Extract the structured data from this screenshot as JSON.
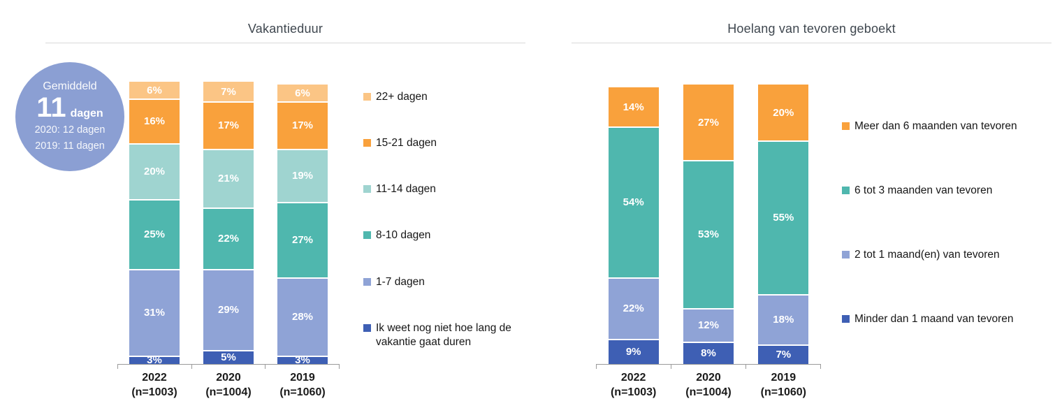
{
  "badge": {
    "intro": "Gemiddeld",
    "value": "11",
    "unit": "dagen",
    "compare_2020": "2020: 12 dagen",
    "compare_2019": "2019: 11 dagen",
    "color": "#8B9FD3"
  },
  "chart_data": [
    {
      "type": "bar",
      "stacked": true,
      "title": "Vakantieduur",
      "value_suffix": "%",
      "ylim": [
        0,
        100
      ],
      "grid": false,
      "legend_position": "right",
      "categories": [
        {
          "year": "2022",
          "n": "(n=1003)"
        },
        {
          "year": "2020",
          "n": "(n=1004)"
        },
        {
          "year": "2019",
          "n": "(n=1060)"
        }
      ],
      "series_bottom_to_top": [
        {
          "name": "Ik weet nog niet hoe lang de vakantie gaat duren",
          "color": "#3E5FB4",
          "values": [
            3,
            5,
            3
          ]
        },
        {
          "name": "1-7 dagen",
          "color": "#8FA3D6",
          "values": [
            31,
            29,
            28
          ]
        },
        {
          "name": "8-10 dagen",
          "color": "#4FB7AE",
          "values": [
            25,
            22,
            27
          ]
        },
        {
          "name": "11-14 dagen",
          "color": "#9FD4D0",
          "values": [
            20,
            21,
            19
          ]
        },
        {
          "name": "15-21 dagen",
          "color": "#F9A13C",
          "values": [
            16,
            17,
            17
          ]
        },
        {
          "name": "22+ dagen",
          "color": "#FBC585",
          "values": [
            6,
            7,
            6
          ]
        }
      ]
    },
    {
      "type": "bar",
      "stacked": true,
      "title": "Hoelang van tevoren geboekt",
      "value_suffix": "%",
      "ylim": [
        0,
        100
      ],
      "grid": false,
      "legend_position": "right",
      "categories": [
        {
          "year": "2022",
          "n": "(n=1003)"
        },
        {
          "year": "2020",
          "n": "(n=1004)"
        },
        {
          "year": "2019",
          "n": "(n=1060)"
        }
      ],
      "series_bottom_to_top": [
        {
          "name": "Minder dan 1 maand van tevoren",
          "color": "#3E5FB4",
          "values": [
            9,
            8,
            7
          ]
        },
        {
          "name": "2 tot 1 maand(en) van tevoren",
          "color": "#8FA3D6",
          "values": [
            22,
            12,
            18
          ]
        },
        {
          "name": "6 tot 3 maanden van tevoren",
          "color": "#4FB7AE",
          "values": [
            54,
            53,
            55
          ]
        },
        {
          "name": "Meer dan 6 maanden van tevoren",
          "color": "#F9A13C",
          "values": [
            14,
            27,
            20
          ]
        }
      ]
    }
  ]
}
